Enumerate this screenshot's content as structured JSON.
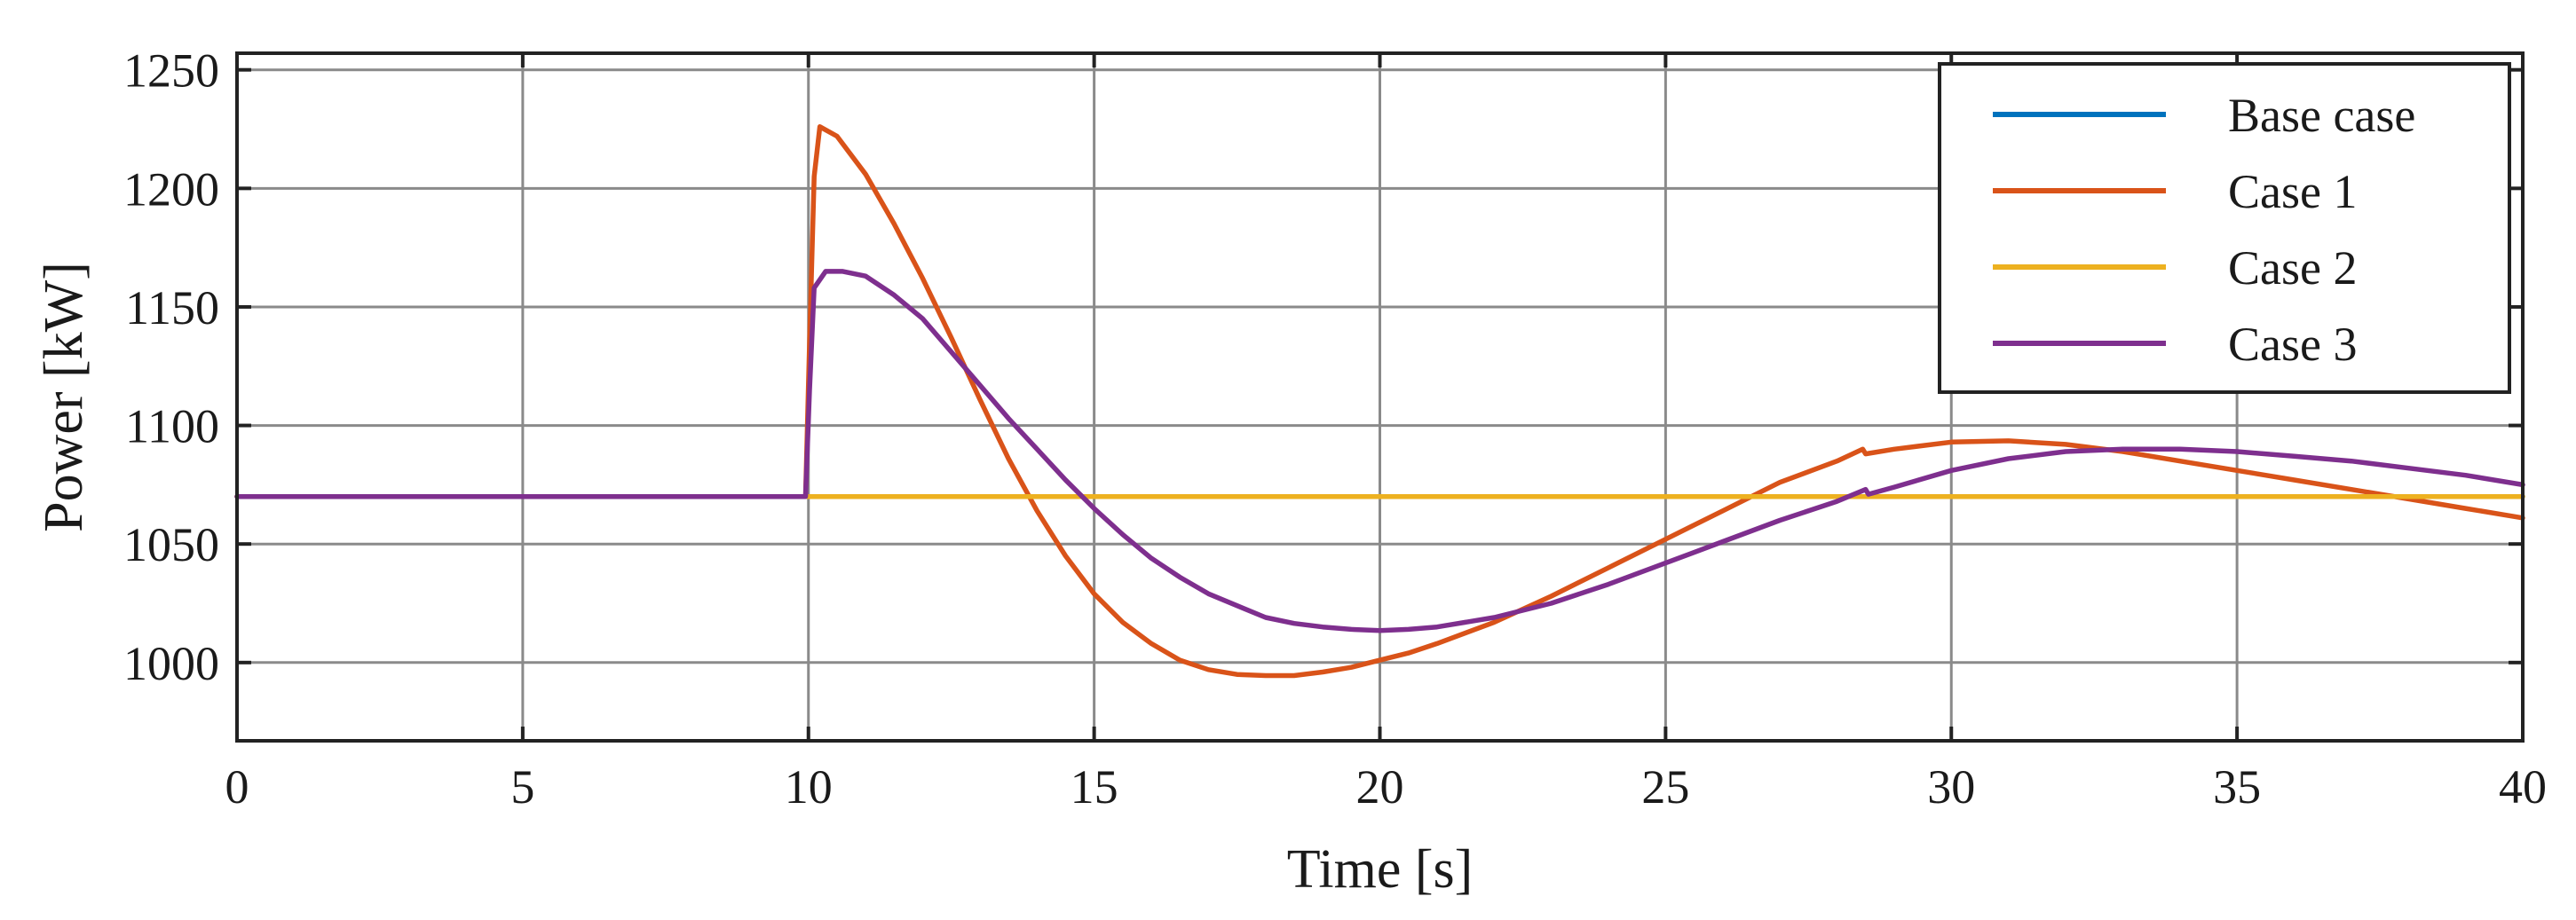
{
  "chart_data": {
    "type": "line",
    "title": "",
    "xlabel": "Time [s]",
    "ylabel": "Power [kW]",
    "xlim": [
      0,
      40
    ],
    "ylim": [
      967,
      1257
    ],
    "xticks": [
      0,
      5,
      10,
      15,
      20,
      25,
      30,
      35,
      40
    ],
    "xtick_labels": [
      "0",
      "5",
      "10",
      "15",
      "20",
      "25",
      "30",
      "35",
      "40"
    ],
    "yticks": [
      1000,
      1050,
      1100,
      1150,
      1200,
      1250
    ],
    "ytick_labels": [
      "1000",
      "1050",
      "1100",
      "1150",
      "1200",
      "1250"
    ],
    "grid": true,
    "legend_position": "top-right",
    "series": [
      {
        "name": "Base case",
        "color": "#0072BD",
        "points": [
          [
            0,
            1070
          ],
          [
            40,
            1070
          ]
        ]
      },
      {
        "name": "Case 1",
        "color": "#D95319",
        "points": [
          [
            0,
            1070
          ],
          [
            9.95,
            1070
          ],
          [
            10.02,
            1135
          ],
          [
            10.1,
            1205
          ],
          [
            10.2,
            1226
          ],
          [
            10.5,
            1222
          ],
          [
            11,
            1206
          ],
          [
            11.5,
            1185
          ],
          [
            12,
            1162
          ],
          [
            12.5,
            1137
          ],
          [
            13,
            1111
          ],
          [
            13.5,
            1086
          ],
          [
            14,
            1064
          ],
          [
            14.5,
            1045
          ],
          [
            15,
            1029
          ],
          [
            15.5,
            1017
          ],
          [
            16,
            1008
          ],
          [
            16.5,
            1001
          ],
          [
            17,
            997
          ],
          [
            17.5,
            995
          ],
          [
            18,
            994.5
          ],
          [
            18.5,
            994.5
          ],
          [
            19,
            996
          ],
          [
            19.5,
            998
          ],
          [
            20,
            1001
          ],
          [
            20.5,
            1004
          ],
          [
            21,
            1008
          ],
          [
            22,
            1017
          ],
          [
            23,
            1028
          ],
          [
            24,
            1040
          ],
          [
            25,
            1052
          ],
          [
            26,
            1064
          ],
          [
            27,
            1076
          ],
          [
            28,
            1085
          ],
          [
            28.45,
            1090
          ],
          [
            28.5,
            1088
          ],
          [
            29,
            1090
          ],
          [
            30,
            1093
          ],
          [
            31,
            1093.5
          ],
          [
            32,
            1092
          ],
          [
            33,
            1089
          ],
          [
            34,
            1085
          ],
          [
            35,
            1081
          ],
          [
            36,
            1077
          ],
          [
            37,
            1073
          ],
          [
            38,
            1069
          ],
          [
            39,
            1065
          ],
          [
            40,
            1061
          ]
        ]
      },
      {
        "name": "Case 2",
        "color": "#EDB120",
        "points": [
          [
            0,
            1070
          ],
          [
            40,
            1070
          ]
        ]
      },
      {
        "name": "Case 3",
        "color": "#7E2F8E",
        "points": [
          [
            0,
            1070
          ],
          [
            9.95,
            1070
          ],
          [
            10.02,
            1115
          ],
          [
            10.1,
            1158
          ],
          [
            10.3,
            1165
          ],
          [
            10.6,
            1165
          ],
          [
            11,
            1163
          ],
          [
            11.5,
            1155
          ],
          [
            12,
            1145
          ],
          [
            12.5,
            1131
          ],
          [
            13,
            1117
          ],
          [
            13.5,
            1103
          ],
          [
            14,
            1090
          ],
          [
            14.5,
            1077
          ],
          [
            15,
            1065
          ],
          [
            15.5,
            1054
          ],
          [
            16,
            1044
          ],
          [
            16.5,
            1036
          ],
          [
            17,
            1029
          ],
          [
            17.5,
            1024
          ],
          [
            18,
            1019
          ],
          [
            18.5,
            1016.5
          ],
          [
            19,
            1015
          ],
          [
            19.5,
            1014
          ],
          [
            20,
            1013.5
          ],
          [
            20.5,
            1014
          ],
          [
            21,
            1015
          ],
          [
            22,
            1019
          ],
          [
            23,
            1025
          ],
          [
            24,
            1033
          ],
          [
            25,
            1042
          ],
          [
            26,
            1051
          ],
          [
            27,
            1060
          ],
          [
            28,
            1068
          ],
          [
            28.5,
            1073
          ],
          [
            28.55,
            1071
          ],
          [
            29,
            1074
          ],
          [
            30,
            1081
          ],
          [
            31,
            1086
          ],
          [
            32,
            1089
          ],
          [
            33,
            1090
          ],
          [
            34,
            1090
          ],
          [
            35,
            1089
          ],
          [
            36,
            1087
          ],
          [
            37,
            1085
          ],
          [
            38,
            1082
          ],
          [
            39,
            1079
          ],
          [
            40,
            1075
          ]
        ]
      }
    ]
  }
}
